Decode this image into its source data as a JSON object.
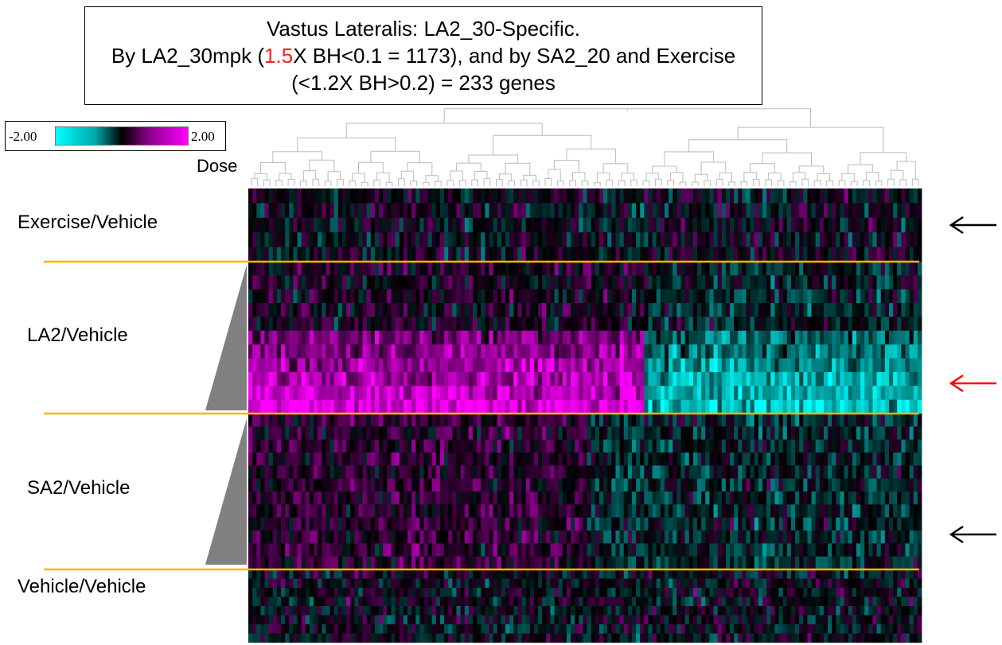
{
  "title": {
    "line1": "Vastus Lateralis: LA2_30-Specific.",
    "line2_a": "By LA2_30mpk (",
    "line2_highlight": "1.5",
    "line2_b": "X BH<0.1 = 1173), and by SA2_20 and Exercise",
    "line3": "(<1.2X BH>0.2) = 233 genes",
    "highlight_color": "#ff2020"
  },
  "legend": {
    "min_label": "-2.00",
    "max_label": "2.00"
  },
  "dose_label": "Dose",
  "colors": {
    "low": "#00ffff",
    "mid": "#000000",
    "high": "#ff00ff",
    "separator": "#ffb400",
    "arrow_black": "#000000",
    "arrow_red": "#ff0000",
    "dose_wedge": "#808080",
    "dendrogram": "#bbbbbb"
  },
  "groups": [
    {
      "label": "Exercise/Vehicle",
      "arrow": "black"
    },
    {
      "label": "LA2/Vehicle",
      "arrow": "red"
    },
    {
      "label": "SA2/Vehicle",
      "arrow": "black"
    },
    {
      "label": "Vehicle/Vehicle",
      "arrow": "none"
    }
  ],
  "chart_data": {
    "type": "heatmap",
    "genes": 233,
    "color_scale": {
      "min": -2.0,
      "max": 2.0
    },
    "row_groups": [
      "Exercise/Vehicle",
      "LA2/Vehicle",
      "SA2/Vehicle",
      "Vehicle/Vehicle"
    ]
  }
}
